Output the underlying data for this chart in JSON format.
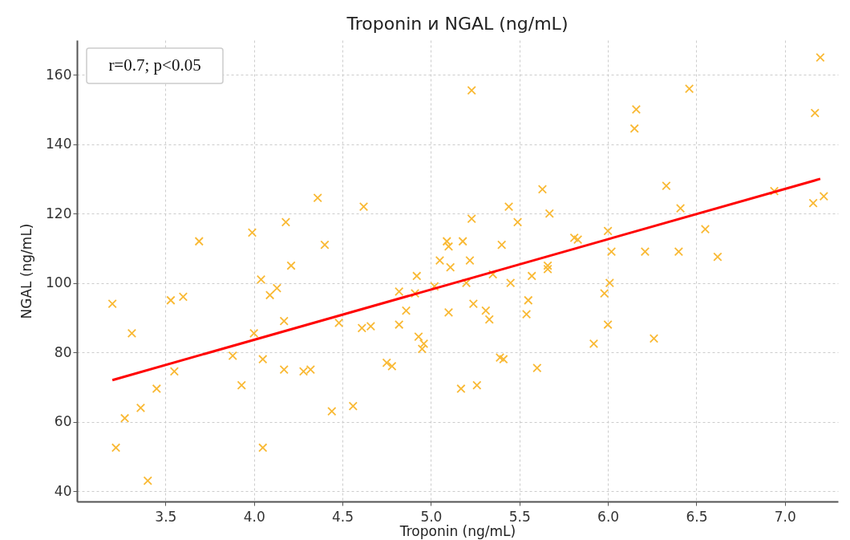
{
  "chart_data": {
    "type": "scatter",
    "title": "Troponin и NGAL (ng/mL)",
    "xlabel": "Troponin (ng/mL)",
    "ylabel": "NGAL (ng/mL)",
    "annotations": [
      "r=0.7; p<0.05"
    ],
    "xlim": [
      3.0,
      7.3
    ],
    "xticks": [
      {
        "value": 3.5,
        "label": "3.5"
      },
      {
        "value": 4.0,
        "label": "4.0"
      },
      {
        "value": 4.5,
        "label": "4.5"
      },
      {
        "value": 5.0,
        "label": "5.0"
      },
      {
        "value": 5.5,
        "label": "5.5"
      },
      {
        "value": 6.0,
        "label": "6.0"
      },
      {
        "value": 6.5,
        "label": "6.5"
      },
      {
        "value": 7.0,
        "label": "7.0"
      }
    ],
    "ylim": [
      37,
      170
    ],
    "yticks": [
      40,
      60,
      80,
      100,
      120,
      140,
      160
    ],
    "grid": true,
    "series": [
      {
        "marker": "cross",
        "color": "#f9b934",
        "x": [
          3.2,
          3.22,
          3.27,
          3.31,
          3.36,
          3.4,
          3.45,
          3.53,
          3.55,
          3.6,
          3.69,
          3.88,
          3.93,
          3.99,
          4.0,
          4.04,
          4.05,
          4.05,
          4.09,
          4.13,
          4.17,
          4.17,
          4.18,
          4.21,
          4.28,
          4.32,
          4.36,
          4.4,
          4.44,
          4.48,
          4.56,
          4.61,
          4.62,
          4.66,
          4.75,
          4.78,
          4.82,
          4.82,
          4.86,
          4.91,
          4.92,
          4.93,
          4.95,
          4.96,
          5.02,
          5.05,
          5.09,
          5.1,
          5.11,
          5.1,
          5.17,
          5.18,
          5.2,
          5.22,
          5.23,
          5.23,
          5.24,
          5.26,
          5.31,
          5.33,
          5.35,
          5.39,
          5.4,
          5.41,
          5.44,
          5.45,
          5.49,
          5.54,
          5.55,
          5.57,
          5.6,
          5.63,
          5.66,
          5.67,
          5.66,
          5.81,
          5.83,
          5.92,
          5.98,
          6.0,
          6.01,
          6.0,
          6.02,
          6.15,
          6.16,
          6.21,
          6.26,
          6.33,
          6.4,
          6.41,
          6.46,
          6.55,
          6.62,
          6.94,
          7.16,
          7.17,
          7.2,
          7.22
        ],
        "values": [
          94,
          52.5,
          61,
          85.5,
          64,
          43,
          69.5,
          95,
          74.5,
          96,
          112,
          79,
          70.5,
          114.5,
          85.5,
          101,
          78,
          52.5,
          96.5,
          98.5,
          89,
          75,
          117.5,
          105,
          74.5,
          75,
          124.5,
          111,
          63,
          88.5,
          64.5,
          87,
          122,
          87.5,
          77,
          76,
          88,
          97.5,
          92,
          97,
          102,
          84.5,
          81,
          82.5,
          99,
          106.5,
          112,
          110.5,
          104.5,
          91.5,
          69.5,
          112,
          100,
          106.5,
          118.5,
          155.5,
          94,
          70.5,
          92,
          89.5,
          102.5,
          78.5,
          111,
          78,
          122,
          100,
          117.5,
          91,
          95,
          102,
          75.5,
          127,
          105,
          120,
          104,
          113,
          112.5,
          82.5,
          97,
          115,
          100,
          88,
          109,
          144.5,
          150,
          109,
          84,
          128,
          109,
          121.5,
          156,
          115.5,
          107.5,
          126.5,
          123,
          149,
          165,
          125
        ]
      },
      {
        "type": "line",
        "color": "#ff0000",
        "x": [
          3.2,
          7.2
        ],
        "values": [
          72,
          130
        ]
      }
    ]
  }
}
